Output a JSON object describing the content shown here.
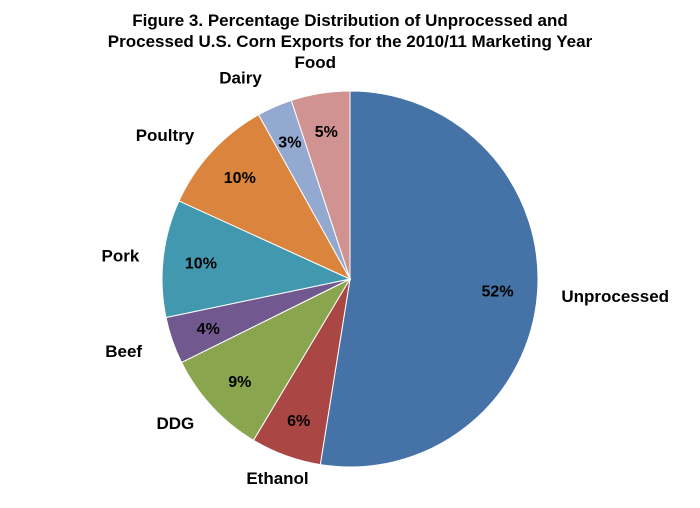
{
  "chart_data": {
    "type": "pie",
    "title_line1": "Figure 3. Percentage Distribution of Unprocessed and",
    "title_line2": "Processed U.S. Corn Exports for the 2010/11 Marketing Year",
    "slices": [
      {
        "category": "Unprocessed",
        "value": 52,
        "label": "52%",
        "color": "#4572A7"
      },
      {
        "category": "Ethanol",
        "value": 6,
        "label": "6%",
        "color": "#AA4643"
      },
      {
        "category": "DDG",
        "value": 9,
        "label": "9%",
        "color": "#89A54E"
      },
      {
        "category": "Beef",
        "value": 4,
        "label": "4%",
        "color": "#71588F"
      },
      {
        "category": "Pork",
        "value": 10,
        "label": "10%",
        "color": "#4198AF"
      },
      {
        "category": "Poultry",
        "value": 10,
        "label": "10%",
        "color": "#DB843D"
      },
      {
        "category": "Dairy",
        "value": 3,
        "label": "3%",
        "color": "#93A9CF"
      },
      {
        "category": "Food",
        "value": 5,
        "label": "5%",
        "color": "#D19392"
      }
    ],
    "start_angle": "12 o'clock",
    "direction": "clockwise",
    "legend": "none"
  }
}
